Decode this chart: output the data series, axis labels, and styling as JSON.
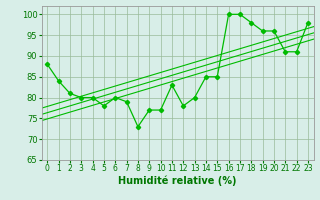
{
  "x": [
    0,
    1,
    2,
    3,
    4,
    5,
    6,
    7,
    8,
    9,
    10,
    11,
    12,
    13,
    14,
    15,
    16,
    17,
    18,
    19,
    20,
    21,
    22,
    23
  ],
  "y": [
    88,
    84,
    81,
    80,
    80,
    78,
    80,
    79,
    73,
    77,
    77,
    83,
    78,
    80,
    85,
    85,
    100,
    100,
    98,
    96,
    96,
    91,
    91,
    98
  ],
  "line_color": "#00bb00",
  "bg_color": "#d8eee8",
  "grid_color": "#99bb99",
  "axis_color": "#007700",
  "xlabel": "Humidité relative (%)",
  "ylim": [
    65,
    102
  ],
  "yticks": [
    65,
    70,
    75,
    80,
    85,
    90,
    95,
    100
  ],
  "xlim": [
    -0.5,
    23.5
  ],
  "reg_offsets": [
    -1.5,
    0.0,
    1.5
  ],
  "label_fontsize": 7,
  "tick_fontsize": 5.5
}
